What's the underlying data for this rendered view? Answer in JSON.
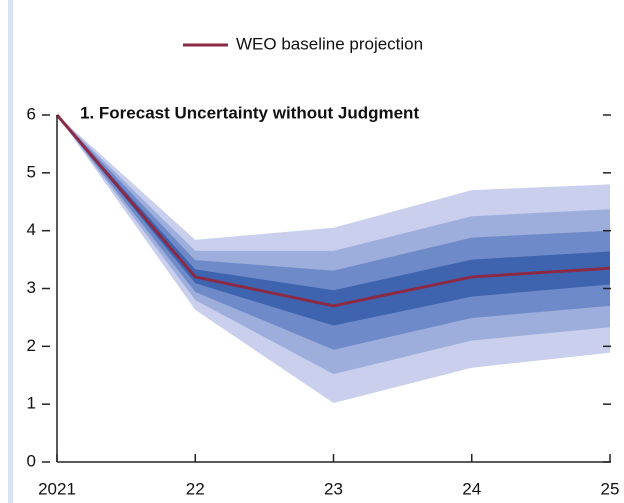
{
  "chart_data": {
    "type": "fan",
    "title": "1. Forecast Uncertainty without Judgment",
    "x": [
      2021,
      2022,
      2023,
      2024,
      2025
    ],
    "xlim": [
      2021,
      2025
    ],
    "xticks": [
      2021,
      {
        "value": 2022,
        "label": "22"
      },
      {
        "value": 2023,
        "label": "23"
      },
      {
        "value": 2024,
        "label": "24"
      },
      {
        "value": 2025,
        "label": "25"
      }
    ],
    "ylim": [
      0,
      6
    ],
    "yticks": [
      0,
      1,
      2,
      3,
      4,
      5,
      6
    ],
    "series": [
      {
        "name": "WEO baseline projection",
        "color": "#8b2a45",
        "values": [
          6,
          3.2,
          2.7,
          3.2,
          3.35
        ]
      }
    ],
    "bands": [
      {
        "color": "#c9cfec",
        "upper": [
          6,
          3.84,
          4.05,
          4.7,
          4.8
        ],
        "lower": [
          6,
          2.63,
          1.02,
          1.63,
          1.89
        ]
      },
      {
        "color": "#9eaedc",
        "upper": [
          6,
          3.65,
          3.65,
          4.25,
          4.37
        ],
        "lower": [
          6,
          2.8,
          1.52,
          2.1,
          2.33
        ]
      },
      {
        "color": "#6f8ac9",
        "upper": [
          6,
          3.49,
          3.31,
          3.88,
          4.0
        ],
        "lower": [
          6,
          2.94,
          1.94,
          2.49,
          2.7
        ]
      },
      {
        "color": "#3e64b0",
        "upper": [
          6,
          3.33,
          2.97,
          3.5,
          3.64
        ],
        "lower": [
          6,
          3.09,
          2.36,
          2.86,
          3.07
        ]
      }
    ],
    "legend": "top"
  }
}
